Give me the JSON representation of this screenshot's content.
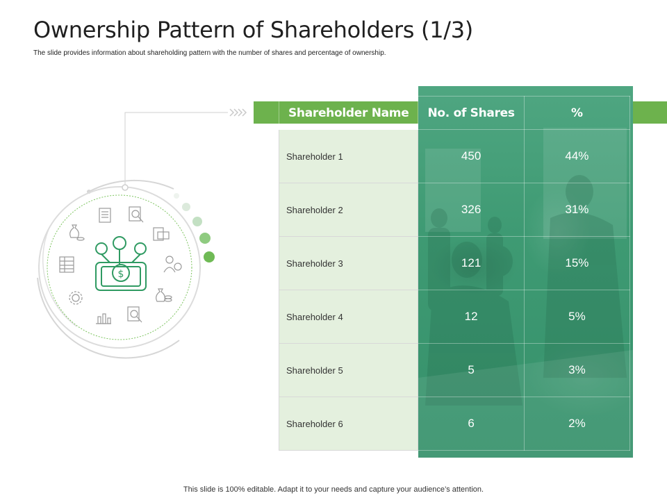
{
  "slide": {
    "title": "Ownership Pattern of Shareholders (1/3)",
    "subtitle": "The slide provides information about shareholding pattern with the number of shares and percentage of ownership.",
    "footer": "This slide is 100% editable. Adapt it to your needs and capture your audience’s attention."
  },
  "table": {
    "headers": {
      "name": "Shareholder Name",
      "shares": "No. of Shares",
      "pct": "%"
    },
    "rows": [
      {
        "name": "Shareholder 1",
        "shares": "450",
        "pct": "44%"
      },
      {
        "name": "Shareholder 2",
        "shares": "326",
        "pct": "31%"
      },
      {
        "name": "Shareholder 3",
        "shares": "121",
        "pct": "15%"
      },
      {
        "name": "Shareholder 4",
        "shares": "12",
        "pct": "5%"
      },
      {
        "name": "Shareholder 5",
        "shares": "5",
        "pct": "3%"
      },
      {
        "name": "Shareholder 6",
        "shares": "6",
        "pct": "2%"
      }
    ]
  },
  "colors": {
    "accent_green": "#6db24d",
    "teal": "#3e9a73",
    "light_green": "#e4f0de",
    "icon_green": "#3a9a5a"
  },
  "icons": {
    "center": "shareholders-money-icon",
    "ring": [
      "invoice-icon",
      "search-document-icon",
      "cash-document-icon",
      "businessman-dollar-icon",
      "money-bag-coins-icon",
      "search-dollar-icon",
      "chart-dollar-icon",
      "dollar-gear-icon",
      "spreadsheet-icon",
      "money-bag-icon"
    ]
  }
}
